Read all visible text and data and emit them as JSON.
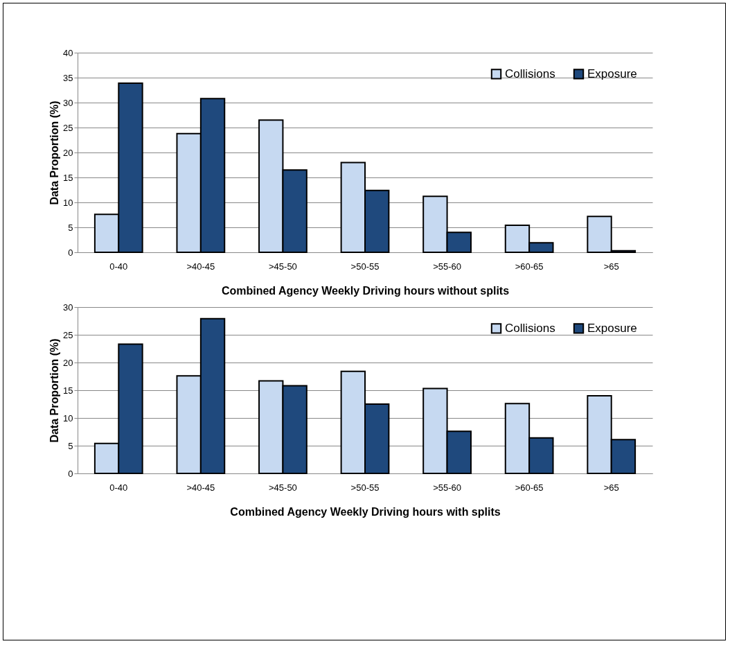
{
  "chart_data": [
    {
      "type": "bar",
      "xlabel": "Combined Agency Weekly Driving hours without splits",
      "ylabel": "Data Proportion (%)",
      "categories": [
        "0-40",
        ">40-45",
        ">45-50",
        ">50-55",
        ">55-60",
        ">60-65",
        ">65"
      ],
      "series": [
        {
          "name": "Collisions",
          "color": "#c6d9f1",
          "values": [
            7.6,
            23.8,
            26.5,
            18.0,
            11.2,
            5.4,
            7.2
          ]
        },
        {
          "name": "Exposure",
          "color": "#1f497d",
          "values": [
            33.9,
            30.8,
            16.5,
            12.4,
            4.0,
            1.9,
            0.3
          ]
        }
      ],
      "ylim": [
        0,
        40
      ],
      "yticks": [
        0,
        5,
        10,
        15,
        20,
        25,
        30,
        35,
        40
      ],
      "grid": "y",
      "legend": "top right"
    },
    {
      "type": "bar",
      "xlabel": "Combined Agency Weekly Driving hours with splits",
      "ylabel": "Data Proportion (%)",
      "categories": [
        "0-40",
        ">40-45",
        ">45-50",
        ">50-55",
        ">55-60",
        ">60-65",
        ">65"
      ],
      "series": [
        {
          "name": "Collisions",
          "color": "#c6d9f1",
          "values": [
            5.4,
            17.6,
            16.7,
            18.4,
            15.3,
            12.6,
            14.0
          ]
        },
        {
          "name": "Exposure",
          "color": "#1f497d",
          "values": [
            23.3,
            27.9,
            15.8,
            12.5,
            7.6,
            6.4,
            6.1
          ]
        }
      ],
      "ylim": [
        0,
        30
      ],
      "yticks": [
        0,
        5,
        10,
        15,
        20,
        25,
        30
      ],
      "grid": "y",
      "legend": "top right"
    }
  ]
}
